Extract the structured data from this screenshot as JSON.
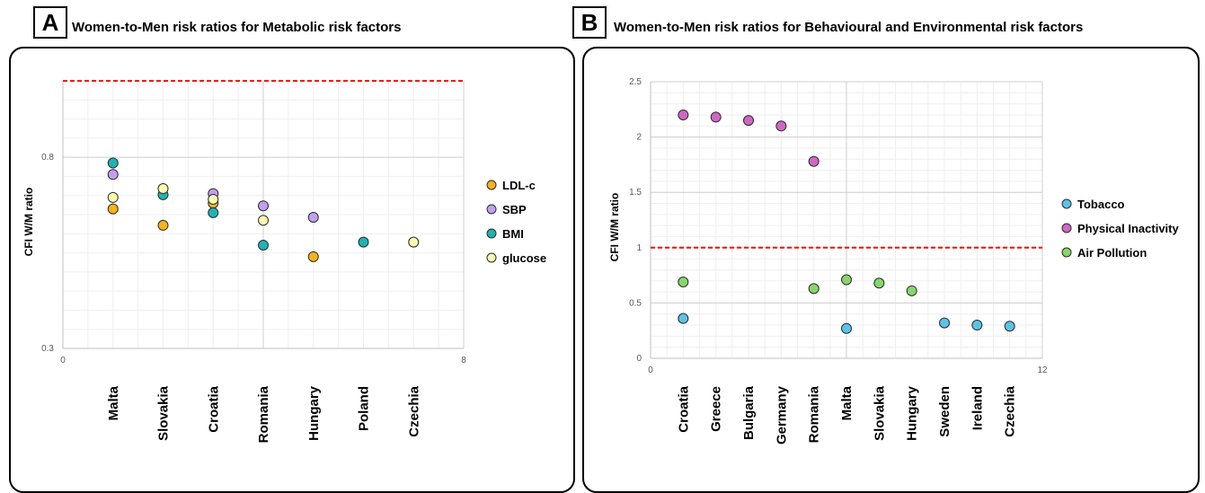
{
  "panels": {
    "a": {
      "label": "A",
      "title": "Women-to-Men risk ratios for Metabolic risk factors"
    },
    "b": {
      "label": "B",
      "title": "Women-to-Men risk ratios for Behavioural and Environmental risk factors"
    }
  },
  "chart_data": [
    {
      "type": "scatter",
      "title": "",
      "xlabel": "",
      "ylabel": "CFI W/M ratio",
      "xlim": [
        0,
        8
      ],
      "ylim": [
        0.3,
        1.0
      ],
      "x_ticks": [
        "0",
        "8"
      ],
      "y_ticks": [
        "0.3",
        "0.8"
      ],
      "reference_line": {
        "y": 1.0,
        "color": "#ff0000",
        "style": "dashed"
      },
      "categories": [
        "Malta",
        "Slovakia",
        "Croatia",
        "Romania",
        "Hungary",
        "Poland",
        "Czechia"
      ],
      "category_x": [
        1,
        2,
        3,
        4,
        5,
        6,
        7
      ],
      "grid": true,
      "legend_position": "right",
      "series": [
        {
          "name": "LDL-c",
          "color": "#f5b417",
          "points": [
            [
              1,
              0.665
            ],
            [
              2,
              0.622
            ],
            [
              3,
              0.68
            ],
            [
              5,
              0.54
            ]
          ]
        },
        {
          "name": "SBP",
          "color": "#c39ff2",
          "points": [
            [
              1,
              0.755
            ],
            [
              3,
              0.705
            ],
            [
              4,
              0.673
            ],
            [
              5,
              0.643
            ]
          ]
        },
        {
          "name": "BMI",
          "color": "#1fb3b3",
          "points": [
            [
              1,
              0.785
            ],
            [
              2,
              0.702
            ],
            [
              3,
              0.655
            ],
            [
              4,
              0.57
            ],
            [
              6,
              0.578
            ]
          ]
        },
        {
          "name": "glucose",
          "color": "#fafab0",
          "points": [
            [
              1,
              0.695
            ],
            [
              2,
              0.718
            ],
            [
              3,
              0.69
            ],
            [
              4,
              0.635
            ],
            [
              7,
              0.578
            ]
          ]
        }
      ]
    },
    {
      "type": "scatter",
      "title": "",
      "xlabel": "",
      "ylabel": "CFI W/M ratio",
      "xlim": [
        0,
        12
      ],
      "ylim": [
        0,
        2.5
      ],
      "x_ticks": [
        "0",
        "12"
      ],
      "y_ticks": [
        "0",
        "0.5",
        "1",
        "1.5",
        "2",
        "2.5"
      ],
      "reference_line": {
        "y": 1.0,
        "color": "#ff0000",
        "style": "dashed"
      },
      "categories": [
        "Croatia",
        "Greece",
        "Bulgaria",
        "Germany",
        "Romania",
        "Malta",
        "Slovakia",
        "Hungary",
        "Sweden",
        "Ireland",
        "Czechia"
      ],
      "category_x": [
        1,
        2,
        3,
        4,
        5,
        6,
        7,
        8,
        9,
        10,
        11
      ],
      "grid": true,
      "legend_position": "right",
      "series": [
        {
          "name": "Tobacco",
          "color": "#5bc3ea",
          "points": [
            [
              1,
              0.36
            ],
            [
              6,
              0.27
            ],
            [
              9,
              0.32
            ],
            [
              10,
              0.3
            ],
            [
              11,
              0.29
            ]
          ]
        },
        {
          "name": "Physical Inactivity",
          "color": "#d166c6",
          "points": [
            [
              1,
              2.2
            ],
            [
              2,
              2.18
            ],
            [
              3,
              2.15
            ],
            [
              4,
              2.1
            ],
            [
              5,
              1.78
            ]
          ]
        },
        {
          "name": "Air Pollution",
          "color": "#86d66b",
          "points": [
            [
              1,
              0.69
            ],
            [
              5,
              0.63
            ],
            [
              6,
              0.71
            ],
            [
              7,
              0.68
            ],
            [
              8,
              0.61
            ]
          ]
        }
      ]
    }
  ]
}
